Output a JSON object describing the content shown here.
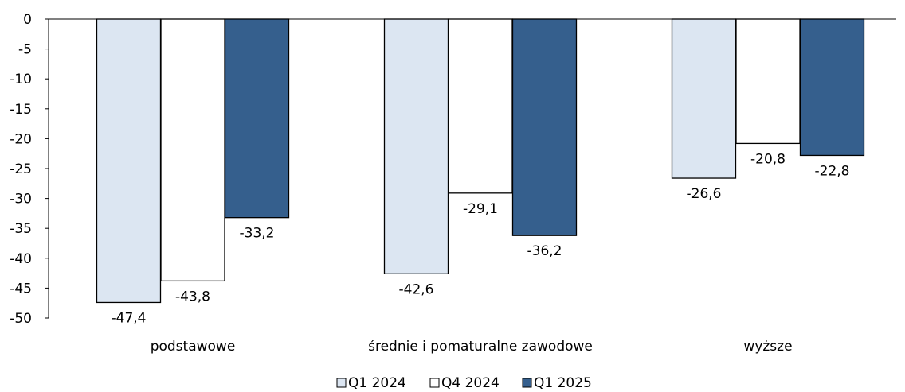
{
  "chart_data": {
    "type": "bar",
    "categories": [
      "podstawowe",
      "średnie i pomaturalne zawodowe",
      "wyższe"
    ],
    "series": [
      {
        "name": "Q1 2024",
        "values": [
          -47.4,
          -42.6,
          -26.6
        ],
        "labels": [
          "-47,4",
          "-42,6",
          "-26,6"
        ],
        "color": "#dce6f2"
      },
      {
        "name": "Q4 2024",
        "values": [
          -43.8,
          -29.1,
          -20.8
        ],
        "labels": [
          "-43,8",
          "-29,1",
          "-20,8"
        ],
        "color": "#ffffff"
      },
      {
        "name": "Q1 2025",
        "values": [
          -33.2,
          -36.2,
          -22.8
        ],
        "labels": [
          "-33,2",
          "-36,2",
          "-22,8"
        ],
        "color": "#355f8d"
      }
    ],
    "yticks": [
      0,
      -5,
      -10,
      -15,
      -20,
      -25,
      -30,
      -35,
      -40,
      -45,
      -50
    ],
    "ylim": [
      -50,
      0
    ],
    "legend_position": "bottom",
    "grid": false,
    "bar_border_color": "#000000"
  }
}
